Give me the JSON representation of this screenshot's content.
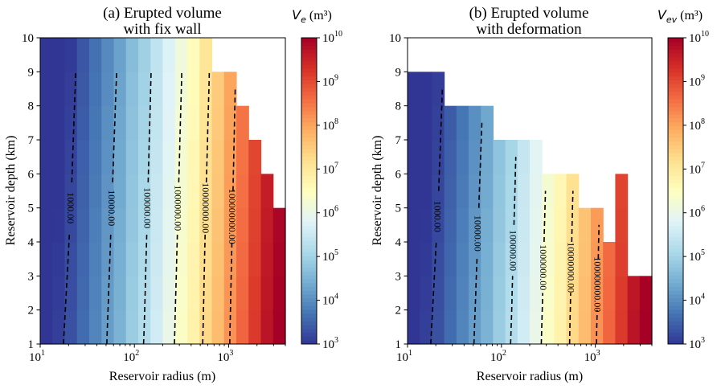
{
  "figure": {
    "panels": [
      {
        "title_line1": "(a) Erupted volume",
        "title_line2": "with fix wall",
        "cbar_label_sym": "V",
        "cbar_label_sub": "e",
        "cbar_label_unit": " (m³)"
      },
      {
        "title_line1": "(b) Erupted volume",
        "title_line2": "with deformation",
        "cbar_label_sym": "V",
        "cbar_label_sub": "ev",
        "cbar_label_unit": " (m³)"
      }
    ]
  },
  "colors": {
    "colormap": "RdYlBu_r",
    "contour_line": "#000000"
  },
  "chart_data": [
    {
      "type": "heatmap",
      "title": "(a) Erupted volume with fix wall",
      "xlabel": "Reservoir radius (m)",
      "ylabel": "Reservoir depth (km)",
      "x_scale": "log",
      "xlim": [
        10,
        4000
      ],
      "ylim": [
        1,
        10
      ],
      "x_ticks": [
        "10",
        "10",
        "10"
      ],
      "x_tick_exponents": [
        "1",
        "2",
        "3"
      ],
      "y_ticks": [
        "1",
        "2",
        "3",
        "4",
        "5",
        "6",
        "7",
        "8",
        "9",
        "10"
      ],
      "colorbar": {
        "label": "Ve (m3)",
        "scale": "log",
        "range": [
          1000,
          10000000000
        ],
        "ticks": [
          "10",
          "10",
          "10",
          "10",
          "10",
          "10",
          "10",
          "10"
        ],
        "tick_exponents": [
          "3",
          "4",
          "5",
          "6",
          "7",
          "8",
          "9",
          "10"
        ]
      },
      "log10_volume_at_depth1": [
        3.0,
        3.1,
        3.3,
        3.6,
        3.9,
        4.2,
        4.5,
        4.9,
        5.2,
        5.6,
        6.0,
        6.4,
        6.8,
        7.3,
        7.7,
        8.2,
        8.7,
        9.2,
        9.7,
        10.0
      ],
      "log10_volume_change_per_km": -0.03,
      "max_depth_km_per_column": [
        10,
        10,
        10,
        10,
        10,
        10,
        10,
        10,
        10,
        10,
        10,
        10,
        10,
        10,
        9,
        9,
        8,
        7,
        6,
        5
      ],
      "grid": false,
      "contour_labels": [
        "1000.00",
        "10000.00",
        "100000.00",
        "1000000.00",
        "10000000.00",
        "100000000.00"
      ]
    },
    {
      "type": "heatmap",
      "title": "(b) Erupted volume with deformation",
      "xlabel": "Reservoir radius (m)",
      "ylabel": "Reservoir depth (km)",
      "x_scale": "log",
      "xlim": [
        10,
        4000
      ],
      "ylim": [
        1,
        10
      ],
      "x_ticks": [
        "10",
        "10",
        "10"
      ],
      "x_tick_exponents": [
        "1",
        "2",
        "3"
      ],
      "y_ticks": [
        "1",
        "2",
        "3",
        "4",
        "5",
        "6",
        "7",
        "8",
        "9",
        "10"
      ],
      "colorbar": {
        "label": "Vev (m3)",
        "scale": "log",
        "range": [
          1000,
          10000000000
        ],
        "ticks": [
          "10",
          "10",
          "10",
          "10",
          "10",
          "10",
          "10",
          "10"
        ],
        "tick_exponents": [
          "3",
          "4",
          "5",
          "6",
          "7",
          "8",
          "9",
          "10"
        ]
      },
      "log10_volume_at_depth1": [
        3.0,
        3.1,
        3.3,
        3.6,
        3.9,
        4.2,
        4.5,
        4.9,
        5.2,
        5.6,
        6.0,
        6.4,
        6.8,
        7.3,
        7.7,
        8.2,
        8.7,
        9.2,
        9.7,
        10.0
      ],
      "log10_volume_change_per_km": -0.03,
      "max_depth_km_per_column": [
        9,
        9,
        9,
        8,
        8,
        8,
        8,
        7,
        7,
        7,
        7,
        6,
        6,
        6,
        5,
        5,
        4,
        6,
        3,
        3
      ],
      "grid": false,
      "contour_labels": [
        "1000.00",
        "10000.00",
        "100000.00",
        "1000000.00",
        "10000000.00",
        "100000000.00"
      ]
    }
  ]
}
